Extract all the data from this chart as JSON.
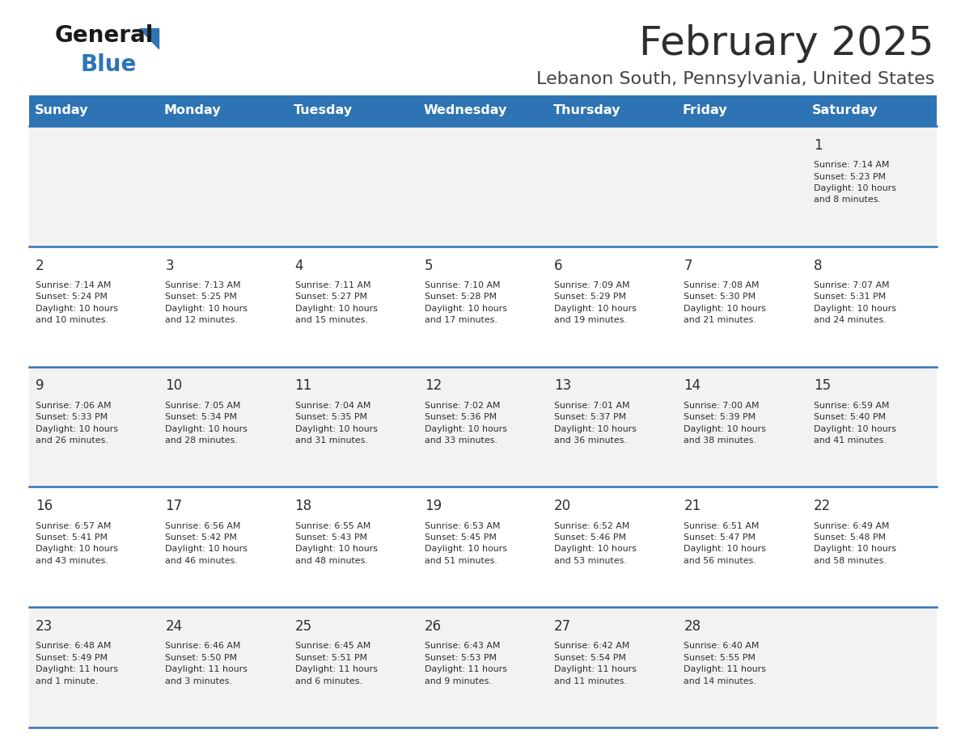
{
  "title": "February 2025",
  "subtitle": "Lebanon South, Pennsylvania, United States",
  "header_bg": "#2E74B5",
  "header_text_color": "#FFFFFF",
  "day_names": [
    "Sunday",
    "Monday",
    "Tuesday",
    "Wednesday",
    "Thursday",
    "Friday",
    "Saturday"
  ],
  "row0_bg": "#F2F2F2",
  "row1_bg": "#FFFFFF",
  "border_color": "#2E74B5",
  "day_number_color": "#2E2E2E",
  "info_text_color": "#2E2E2E",
  "title_color": "#2E2E2E",
  "subtitle_color": "#444444",
  "logo_general_color": "#1A1A1A",
  "logo_blue_color": "#2E74B5",
  "fig_width": 11.88,
  "fig_height": 9.18,
  "dpi": 100,
  "weeks": [
    [
      {
        "day": null,
        "info": null
      },
      {
        "day": null,
        "info": null
      },
      {
        "day": null,
        "info": null
      },
      {
        "day": null,
        "info": null
      },
      {
        "day": null,
        "info": null
      },
      {
        "day": null,
        "info": null
      },
      {
        "day": 1,
        "info": "Sunrise: 7:14 AM\nSunset: 5:23 PM\nDaylight: 10 hours\nand 8 minutes."
      }
    ],
    [
      {
        "day": 2,
        "info": "Sunrise: 7:14 AM\nSunset: 5:24 PM\nDaylight: 10 hours\nand 10 minutes."
      },
      {
        "day": 3,
        "info": "Sunrise: 7:13 AM\nSunset: 5:25 PM\nDaylight: 10 hours\nand 12 minutes."
      },
      {
        "day": 4,
        "info": "Sunrise: 7:11 AM\nSunset: 5:27 PM\nDaylight: 10 hours\nand 15 minutes."
      },
      {
        "day": 5,
        "info": "Sunrise: 7:10 AM\nSunset: 5:28 PM\nDaylight: 10 hours\nand 17 minutes."
      },
      {
        "day": 6,
        "info": "Sunrise: 7:09 AM\nSunset: 5:29 PM\nDaylight: 10 hours\nand 19 minutes."
      },
      {
        "day": 7,
        "info": "Sunrise: 7:08 AM\nSunset: 5:30 PM\nDaylight: 10 hours\nand 21 minutes."
      },
      {
        "day": 8,
        "info": "Sunrise: 7:07 AM\nSunset: 5:31 PM\nDaylight: 10 hours\nand 24 minutes."
      }
    ],
    [
      {
        "day": 9,
        "info": "Sunrise: 7:06 AM\nSunset: 5:33 PM\nDaylight: 10 hours\nand 26 minutes."
      },
      {
        "day": 10,
        "info": "Sunrise: 7:05 AM\nSunset: 5:34 PM\nDaylight: 10 hours\nand 28 minutes."
      },
      {
        "day": 11,
        "info": "Sunrise: 7:04 AM\nSunset: 5:35 PM\nDaylight: 10 hours\nand 31 minutes."
      },
      {
        "day": 12,
        "info": "Sunrise: 7:02 AM\nSunset: 5:36 PM\nDaylight: 10 hours\nand 33 minutes."
      },
      {
        "day": 13,
        "info": "Sunrise: 7:01 AM\nSunset: 5:37 PM\nDaylight: 10 hours\nand 36 minutes."
      },
      {
        "day": 14,
        "info": "Sunrise: 7:00 AM\nSunset: 5:39 PM\nDaylight: 10 hours\nand 38 minutes."
      },
      {
        "day": 15,
        "info": "Sunrise: 6:59 AM\nSunset: 5:40 PM\nDaylight: 10 hours\nand 41 minutes."
      }
    ],
    [
      {
        "day": 16,
        "info": "Sunrise: 6:57 AM\nSunset: 5:41 PM\nDaylight: 10 hours\nand 43 minutes."
      },
      {
        "day": 17,
        "info": "Sunrise: 6:56 AM\nSunset: 5:42 PM\nDaylight: 10 hours\nand 46 minutes."
      },
      {
        "day": 18,
        "info": "Sunrise: 6:55 AM\nSunset: 5:43 PM\nDaylight: 10 hours\nand 48 minutes."
      },
      {
        "day": 19,
        "info": "Sunrise: 6:53 AM\nSunset: 5:45 PM\nDaylight: 10 hours\nand 51 minutes."
      },
      {
        "day": 20,
        "info": "Sunrise: 6:52 AM\nSunset: 5:46 PM\nDaylight: 10 hours\nand 53 minutes."
      },
      {
        "day": 21,
        "info": "Sunrise: 6:51 AM\nSunset: 5:47 PM\nDaylight: 10 hours\nand 56 minutes."
      },
      {
        "day": 22,
        "info": "Sunrise: 6:49 AM\nSunset: 5:48 PM\nDaylight: 10 hours\nand 58 minutes."
      }
    ],
    [
      {
        "day": 23,
        "info": "Sunrise: 6:48 AM\nSunset: 5:49 PM\nDaylight: 11 hours\nand 1 minute."
      },
      {
        "day": 24,
        "info": "Sunrise: 6:46 AM\nSunset: 5:50 PM\nDaylight: 11 hours\nand 3 minutes."
      },
      {
        "day": 25,
        "info": "Sunrise: 6:45 AM\nSunset: 5:51 PM\nDaylight: 11 hours\nand 6 minutes."
      },
      {
        "day": 26,
        "info": "Sunrise: 6:43 AM\nSunset: 5:53 PM\nDaylight: 11 hours\nand 9 minutes."
      },
      {
        "day": 27,
        "info": "Sunrise: 6:42 AM\nSunset: 5:54 PM\nDaylight: 11 hours\nand 11 minutes."
      },
      {
        "day": 28,
        "info": "Sunrise: 6:40 AM\nSunset: 5:55 PM\nDaylight: 11 hours\nand 14 minutes."
      },
      {
        "day": null,
        "info": null
      }
    ]
  ]
}
